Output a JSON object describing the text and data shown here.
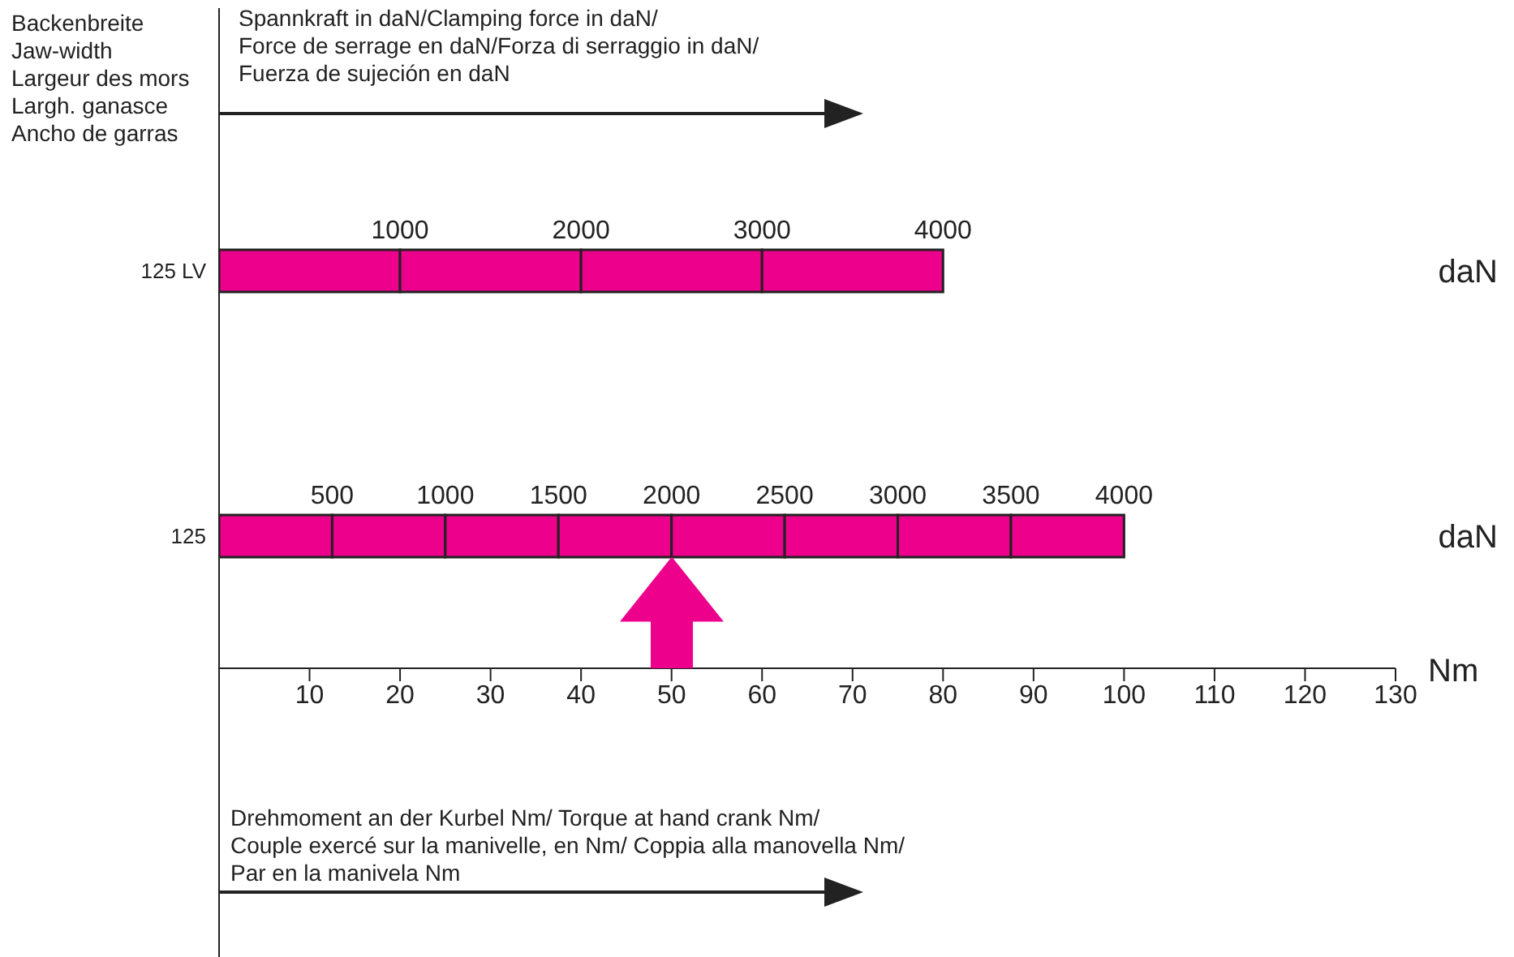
{
  "chart_data": {
    "type": "bar",
    "orientation": "horizontal",
    "stacked": true,
    "title": "Spannkraft in daN/Clamping force in daN/\nForce de serrage en daN/Forza di serraggio in daN/\nFuerza de sujeción en daN",
    "ylabel": "Backenbreite\nJaw-width\nLargeur des mors\nLargh. ganasce\nAncho de garras",
    "xlabel": "Drehmoment an der Kurbel Nm/ Torque at hand crank Nm/\nCouple exercé sur la manivelle, en Nm/ Coppia alla manovella Nm/\nPar en la manivela Nm",
    "categories": [
      "125 LV",
      "125"
    ],
    "series": [
      {
        "color": "#ec008c",
        "values": [
          20,
          12.5
        ]
      },
      {
        "color": "#ec008c",
        "values": [
          20,
          12.5
        ]
      },
      {
        "color": "#ec008c",
        "values": [
          20,
          12.5
        ]
      },
      {
        "color": "#ec008c",
        "values": [
          20,
          12.5
        ]
      },
      {
        "color": "#ec008c",
        "values": [
          null,
          12.5
        ]
      },
      {
        "color": "#ec008c",
        "values": [
          null,
          12.5
        ]
      },
      {
        "color": "#ec008c",
        "values": [
          null,
          12.5
        ]
      },
      {
        "color": "#ec008c",
        "values": [
          null,
          12.5
        ]
      }
    ],
    "xlim": [
      0,
      130
    ],
    "xticks": [
      10,
      20,
      30,
      40,
      50,
      60,
      70,
      80,
      90,
      100,
      110,
      120,
      130
    ],
    "annotations": [
      "Nm",
      "daN",
      "daN",
      {
        "text": "1000",
        "x": 20,
        "y": "125 LV"
      },
      {
        "text": "2000",
        "x": 40,
        "y": "125 LV"
      },
      {
        "text": "3000",
        "x": 60,
        "y": "125 LV"
      },
      {
        "text": "4000",
        "x": 80,
        "y": "125 LV"
      },
      {
        "text": "500",
        "x": 12.5,
        "y": "125"
      },
      {
        "text": "1000",
        "x": 25,
        "y": "125"
      },
      {
        "text": "1500",
        "x": 37.5,
        "y": "125"
      },
      {
        "text": "2000",
        "x": 50,
        "y": "125"
      },
      {
        "text": "2500",
        "x": 62.5,
        "y": "125"
      },
      {
        "text": "3000",
        "x": 75,
        "y": "125"
      },
      {
        "text": "3500",
        "x": 87.5,
        "y": "125"
      },
      {
        "text": "4000",
        "x": 100,
        "y": "125"
      }
    ]
  }
}
